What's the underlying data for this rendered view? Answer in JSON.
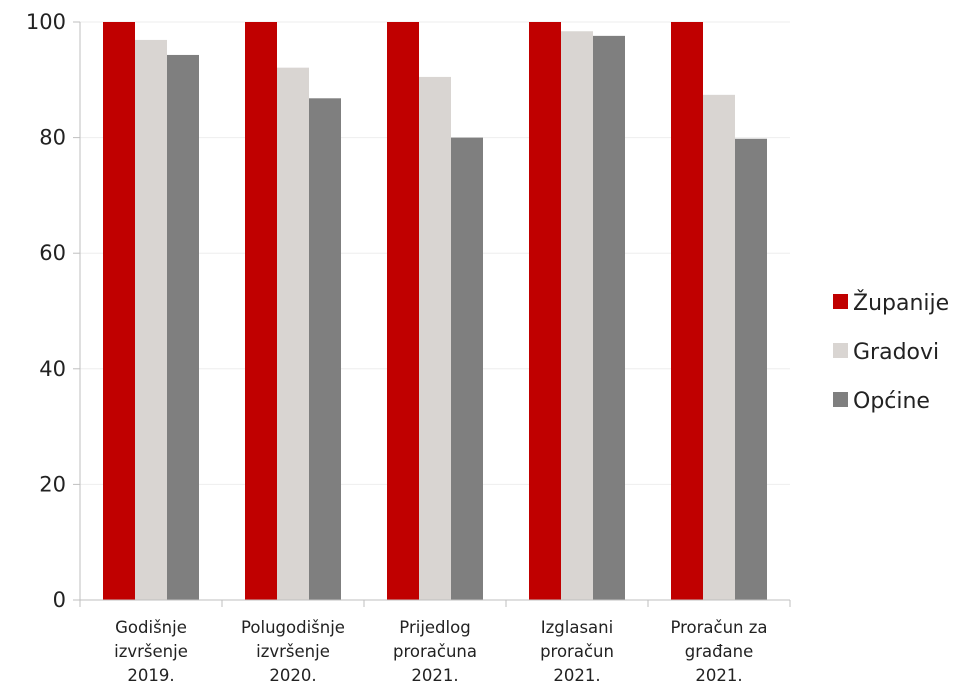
{
  "chart_data": {
    "type": "bar",
    "categories": [
      [
        "Godišnje",
        "izvršenje",
        "2019."
      ],
      [
        "Polugodišnje",
        "izvršenje",
        "2020."
      ],
      [
        "Prijedlog",
        "proračuna",
        "2021."
      ],
      [
        "Izglasani",
        "proračun",
        "2021."
      ],
      [
        "Proračun za",
        "građane",
        "2021."
      ]
    ],
    "series": [
      {
        "name": "Županije",
        "color": "#c00000",
        "values": [
          100,
          100,
          100,
          100,
          100
        ]
      },
      {
        "name": "Gradovi",
        "color": "#d9d5d2",
        "values": [
          96.9,
          92.1,
          90.5,
          98.4,
          87.4
        ]
      },
      {
        "name": "Općine",
        "color": "#7f7f7f",
        "values": [
          94.3,
          86.8,
          80.0,
          97.6,
          79.8
        ]
      }
    ],
    "ylim": [
      0,
      100
    ],
    "yticks": [
      0,
      20,
      40,
      60,
      80,
      100
    ],
    "grid": true,
    "legend": "right"
  }
}
